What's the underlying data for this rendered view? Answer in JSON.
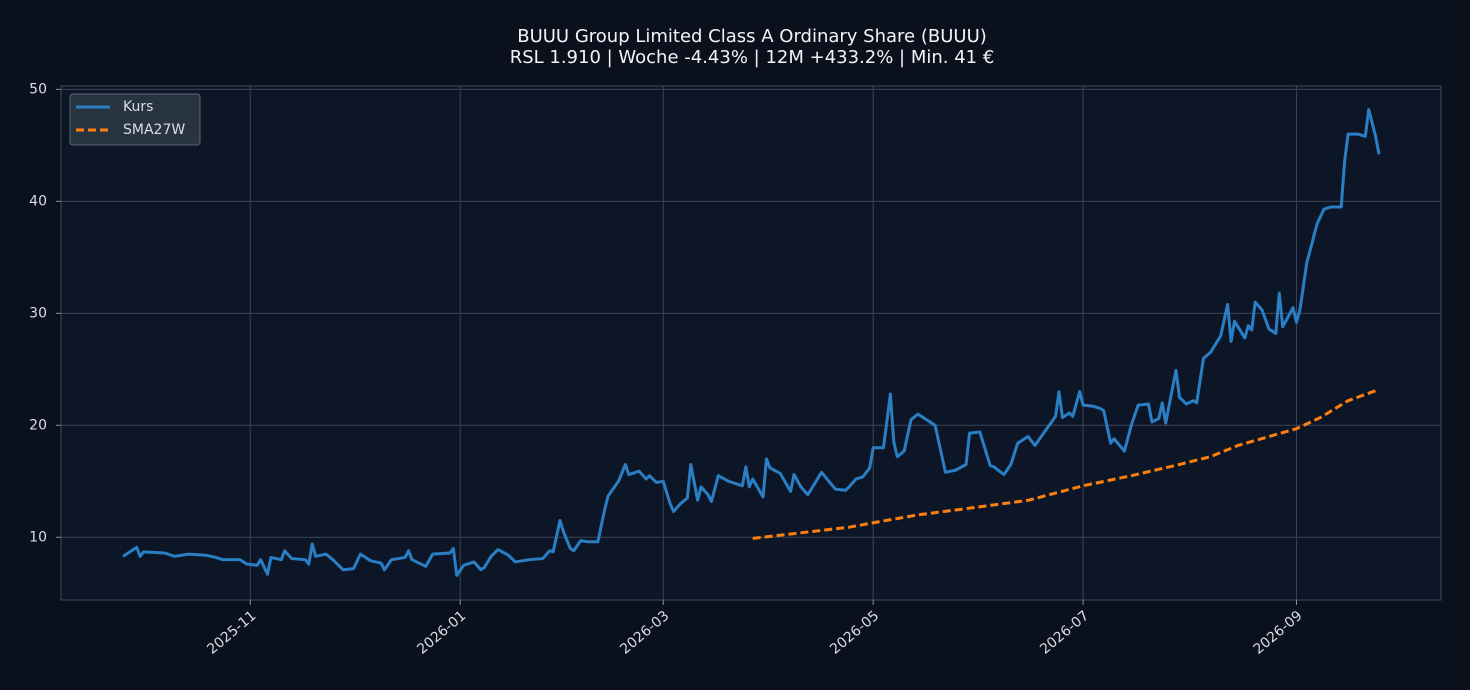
{
  "chart_data": {
    "type": "line",
    "title": "BUUU Group Limited Class A Ordinary Share (BUUU)",
    "subtitle": "RSL 1.910 | Woche -4.43% | 12M +433.2% | Min. 41 €",
    "xlim": [
      -55,
      346
    ],
    "ylim": [
      4.4,
      50.3
    ],
    "xticks": [
      {
        "value": 0,
        "label": "2025-11"
      },
      {
        "value": 61,
        "label": "2026-01"
      },
      {
        "value": 120,
        "label": "2026-03"
      },
      {
        "value": 181,
        "label": "2026-05"
      },
      {
        "value": 242,
        "label": "2026-07"
      },
      {
        "value": 304,
        "label": "2026-09"
      }
    ],
    "yticks": [
      10,
      20,
      30,
      40,
      50
    ],
    "grid": true,
    "legend": "upper left",
    "series": [
      {
        "name": "Kurs",
        "color": "#2a7fc4",
        "x": [
          -37,
          -33,
          -32,
          -31,
          -25,
          -22,
          -18,
          -13,
          -10,
          -8,
          -3,
          -1,
          2,
          3,
          5,
          6,
          9,
          10,
          12,
          16,
          17,
          18,
          19,
          22,
          24,
          27,
          30,
          32,
          35,
          38,
          39,
          41,
          45,
          46,
          47,
          51,
          53,
          58,
          59,
          60,
          62,
          65,
          67,
          68,
          70,
          72,
          75,
          77,
          81,
          85,
          87,
          88,
          90,
          91,
          93,
          94,
          96,
          98,
          101,
          103,
          104,
          107,
          109,
          110,
          113,
          115,
          116,
          118,
          120,
          122,
          123,
          125,
          127,
          128,
          130,
          131,
          133,
          134,
          136,
          139,
          141,
          143,
          144,
          145,
          146,
          149,
          150,
          151,
          154,
          157,
          158,
          160,
          162,
          166,
          170,
          173,
          174,
          176,
          178,
          180,
          181,
          184,
          186,
          187,
          188,
          190,
          192,
          194,
          199,
          202,
          205,
          208,
          209,
          212,
          215,
          216,
          219,
          221,
          223,
          226,
          228,
          231,
          234,
          235,
          236,
          238,
          239,
          241,
          242,
          245,
          247,
          248,
          250,
          251,
          254,
          256,
          258,
          261,
          262,
          264,
          265,
          266,
          267,
          269,
          270,
          272,
          274,
          275,
          277,
          279,
          282,
          284,
          285,
          286,
          289,
          290,
          291,
          292,
          294,
          296,
          298,
          299,
          300,
          303,
          304,
          305,
          307,
          310,
          312,
          314,
          317,
          318,
          319,
          322,
          324,
          325,
          327,
          328
        ],
        "values": [
          8.3,
          9.1,
          8.3,
          8.7,
          8.6,
          8.3,
          8.5,
          8.4,
          8.2,
          8.0,
          8.0,
          7.6,
          7.5,
          8.0,
          6.7,
          8.2,
          8.0,
          8.8,
          8.1,
          8.0,
          7.6,
          9.4,
          8.3,
          8.5,
          8.0,
          7.1,
          7.2,
          8.5,
          7.9,
          7.7,
          7.1,
          8.0,
          8.2,
          8.8,
          8.0,
          7.4,
          8.5,
          8.6,
          9.0,
          6.6,
          7.5,
          7.8,
          7.1,
          7.3,
          8.3,
          8.9,
          8.4,
          7.8,
          8.0,
          8.1,
          8.8,
          8.7,
          11.5,
          10.5,
          9.0,
          8.8,
          9.7,
          9.6,
          9.6,
          12.5,
          13.7,
          15.0,
          16.5,
          15.6,
          15.9,
          15.2,
          15.5,
          14.9,
          15.0,
          13.0,
          12.3,
          13.0,
          13.5,
          16.5,
          13.3,
          14.5,
          13.8,
          13.2,
          15.5,
          15.0,
          14.8,
          14.6,
          16.3,
          14.5,
          15.2,
          13.6,
          17.0,
          16.2,
          15.7,
          14.1,
          15.6,
          14.5,
          13.8,
          15.8,
          14.3,
          14.2,
          14.5,
          15.2,
          15.4,
          16.2,
          18.0,
          18.0,
          22.8,
          18.5,
          17.2,
          17.7,
          20.5,
          21.0,
          20.0,
          15.8,
          16.0,
          16.5,
          19.3,
          19.4,
          16.4,
          16.3,
          15.6,
          16.5,
          18.4,
          19.0,
          18.2,
          19.5,
          20.8,
          23.0,
          20.7,
          21.1,
          20.8,
          23.0,
          21.8,
          21.7,
          21.5,
          21.3,
          18.4,
          18.8,
          17.7,
          20.0,
          21.8,
          21.9,
          20.3,
          20.6,
          22.0,
          20.2,
          21.8,
          24.9,
          22.5,
          21.9,
          22.2,
          22.0,
          26.0,
          26.5,
          28.0,
          30.8,
          27.5,
          29.3,
          27.8,
          28.9,
          28.5,
          31.0,
          30.3,
          28.6,
          28.2,
          31.8,
          28.8,
          30.5,
          29.2,
          30.3,
          34.5,
          38.0,
          39.3,
          39.5,
          39.5,
          43.6,
          46.0,
          46.0,
          45.8,
          48.2,
          45.8,
          44.2
        ]
      },
      {
        "name": "SMA27W",
        "color": "#ff7f0e",
        "dashed": true,
        "x": [
          146,
          160,
          174,
          181,
          194,
          209,
          226,
          242,
          256,
          270,
          279,
          287,
          304,
          311,
          319,
          328
        ],
        "values": [
          9.9,
          10.4,
          10.9,
          11.3,
          12.0,
          12.6,
          13.3,
          14.6,
          15.5,
          16.5,
          17.2,
          18.2,
          19.7,
          20.7,
          22.2,
          23.2
        ]
      }
    ]
  }
}
